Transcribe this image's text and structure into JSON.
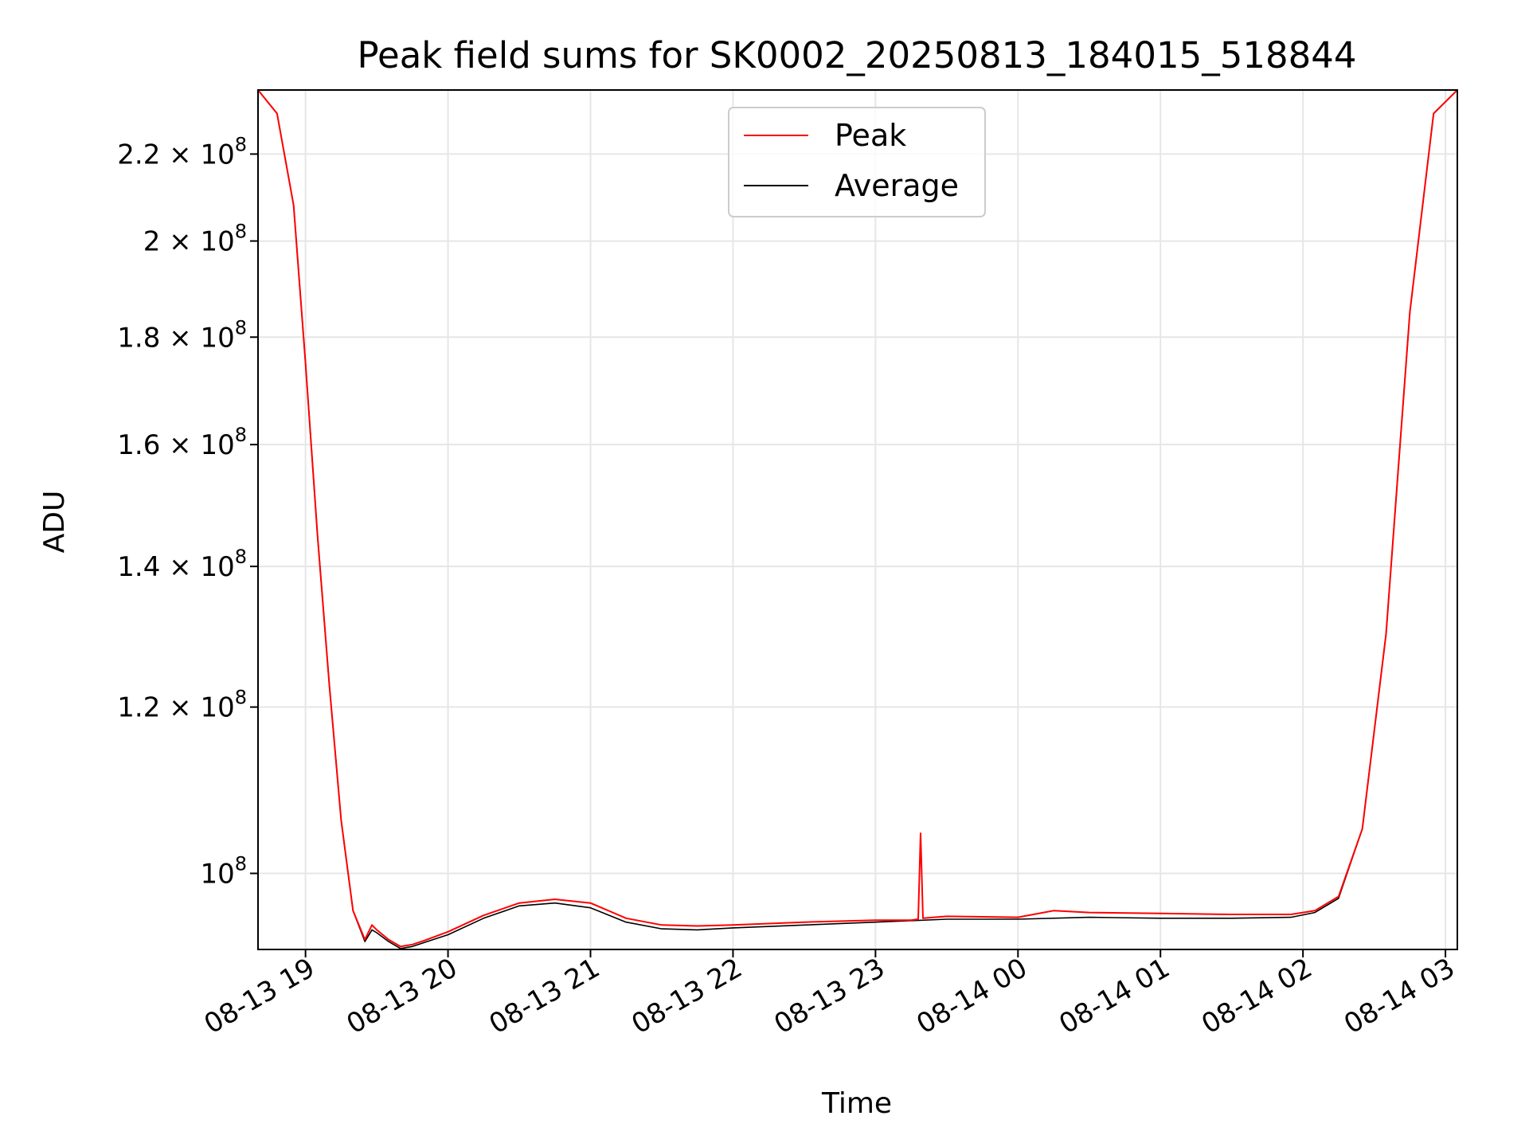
{
  "chart_data": {
    "type": "line",
    "title": "Peak field sums for SK0002_20250813_184015_518844",
    "xlabel": "Time",
    "ylabel": "ADU",
    "yscale": "log",
    "xlim": [
      "2025-08-13 18:40",
      "2025-08-14 03:05"
    ],
    "ylim": [
      92000000,
      236000000
    ],
    "grid": true,
    "legend_position": "top-center",
    "x_ticks": [
      "08-13 19",
      "08-13 20",
      "08-13 21",
      "08-13 22",
      "08-13 23",
      "08-14 00",
      "08-14 01",
      "08-14 02",
      "08-14 03"
    ],
    "y_ticks": [
      {
        "value": 220000000,
        "mantissa": "2.2 × 10",
        "exp": "8"
      },
      {
        "value": 200000000,
        "mantissa": "2 × 10",
        "exp": "8"
      },
      {
        "value": 180000000,
        "mantissa": "1.8 × 10",
        "exp": "8"
      },
      {
        "value": 160000000,
        "mantissa": "1.6 × 10",
        "exp": "8"
      },
      {
        "value": 140000000,
        "mantissa": "1.4 × 10",
        "exp": "8"
      },
      {
        "value": 120000000,
        "mantissa": "1.2 × 10",
        "exp": "8"
      },
      {
        "value": 100000000,
        "mantissa": "10",
        "exp": "8"
      }
    ],
    "series": [
      {
        "name": "Peak",
        "color": "#ff0000",
        "x": [
          "2025-08-13 18:40",
          "2025-08-13 18:48",
          "2025-08-13 18:55",
          "2025-08-13 19:00",
          "2025-08-13 19:05",
          "2025-08-13 19:10",
          "2025-08-13 19:15",
          "2025-08-13 19:20",
          "2025-08-13 19:25",
          "2025-08-13 19:28",
          "2025-08-13 19:30",
          "2025-08-13 19:35",
          "2025-08-13 19:40",
          "2025-08-13 19:45",
          "2025-08-13 19:50",
          "2025-08-13 20:00",
          "2025-08-13 20:15",
          "2025-08-13 20:30",
          "2025-08-13 20:45",
          "2025-08-13 21:00",
          "2025-08-13 21:15",
          "2025-08-13 21:30",
          "2025-08-13 21:45",
          "2025-08-13 22:00",
          "2025-08-13 22:30",
          "2025-08-13 23:00",
          "2025-08-13 23:15",
          "2025-08-13 23:18",
          "2025-08-13 23:19",
          "2025-08-13 23:20",
          "2025-08-13 23:30",
          "2025-08-14 00:00",
          "2025-08-14 00:15",
          "2025-08-14 00:30",
          "2025-08-14 01:00",
          "2025-08-14 01:30",
          "2025-08-14 01:55",
          "2025-08-14 02:05",
          "2025-08-14 02:15",
          "2025-08-14 02:25",
          "2025-08-14 02:35",
          "2025-08-14 02:45",
          "2025-08-14 02:55",
          "2025-08-14 03:05"
        ],
        "y": [
          236000000,
          230000000,
          208000000,
          175000000,
          145000000,
          123000000,
          106000000,
          96000000,
          93000000,
          94500000,
          94000000,
          93000000,
          92300000,
          92500000,
          92900000,
          93800000,
          95500000,
          96800000,
          97200000,
          96800000,
          95200000,
          94500000,
          94400000,
          94500000,
          94800000,
          95000000,
          95000000,
          95100000,
          104500000,
          95200000,
          95400000,
          95300000,
          96000000,
          95800000,
          95700000,
          95600000,
          95600000,
          96000000,
          97500000,
          105000000,
          130000000,
          185000000,
          230000000,
          236000000
        ]
      },
      {
        "name": "Average",
        "color": "#000000",
        "x": [
          "2025-08-13 18:40",
          "2025-08-13 18:48",
          "2025-08-13 18:55",
          "2025-08-13 19:00",
          "2025-08-13 19:05",
          "2025-08-13 19:10",
          "2025-08-13 19:15",
          "2025-08-13 19:20",
          "2025-08-13 19:25",
          "2025-08-13 19:28",
          "2025-08-13 19:30",
          "2025-08-13 19:35",
          "2025-08-13 19:40",
          "2025-08-13 19:45",
          "2025-08-13 19:50",
          "2025-08-13 20:00",
          "2025-08-13 20:15",
          "2025-08-13 20:30",
          "2025-08-13 20:45",
          "2025-08-13 21:00",
          "2025-08-13 21:15",
          "2025-08-13 21:30",
          "2025-08-13 21:45",
          "2025-08-13 22:00",
          "2025-08-13 22:30",
          "2025-08-13 23:00",
          "2025-08-13 23:30",
          "2025-08-14 00:00",
          "2025-08-14 00:30",
          "2025-08-14 01:00",
          "2025-08-14 01:30",
          "2025-08-14 01:55",
          "2025-08-14 02:05",
          "2025-08-14 02:15",
          "2025-08-14 02:25",
          "2025-08-14 02:35",
          "2025-08-14 02:45",
          "2025-08-14 02:55",
          "2025-08-14 03:05"
        ],
        "y": [
          236000000,
          230000000,
          208000000,
          175000000,
          145000000,
          123000000,
          106000000,
          96000000,
          92800000,
          94000000,
          93700000,
          92800000,
          92100000,
          92300000,
          92700000,
          93500000,
          95200000,
          96500000,
          96800000,
          96300000,
          94800000,
          94100000,
          94000000,
          94200000,
          94500000,
          94800000,
          95100000,
          95100000,
          95300000,
          95200000,
          95200000,
          95300000,
          95800000,
          97300000,
          105000000,
          130000000,
          185000000,
          230000000,
          236000000
        ]
      }
    ]
  }
}
